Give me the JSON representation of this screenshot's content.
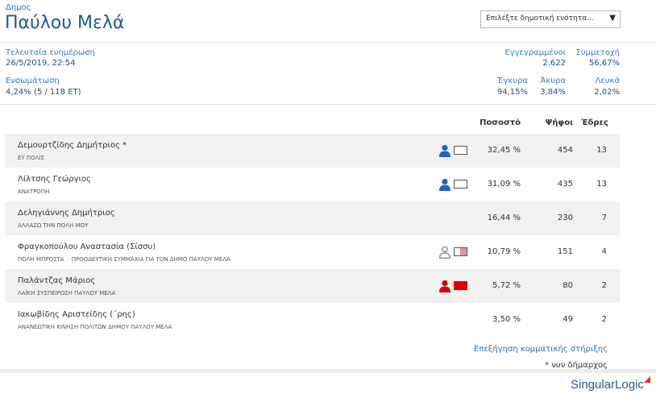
{
  "header": {
    "label": "Δημος",
    "title": "Παύλου Μελά",
    "select_text": "Επιλέξτε δημοτική ενότητα..."
  },
  "stats": {
    "last_update_label": "Τελευταία ενημέρωση",
    "last_update_value": "26/5/2019, 22:54",
    "integration_label": "Ενσωμάτωση",
    "integration_value": "4,24% (5 / 118 ΕΤ)",
    "registered_label": "Εγγεγραμμένοι",
    "registered_value": "2.622",
    "turnout_label": "Συμμετοχή",
    "turnout_value": "56,67%",
    "valid_label": "Έγκυρα",
    "valid_value": "94,15%",
    "invalid_label": "Άκυρα",
    "invalid_value": "3,84%",
    "blank_label": "Λευκά",
    "blank_value": "2,02%"
  },
  "table": {
    "headers": {
      "percent": "Ποσοστό",
      "votes": "Ψήφοι",
      "seats": "Έδρες"
    },
    "rows": [
      {
        "name": "Δεμουρτζίδης Δημήτριος *",
        "party": "ΕΥ ΠΟΛΙΣ",
        "percent": "32,45 %",
        "votes": "454",
        "seats": "13"
      },
      {
        "name": "Λίλτσης Γεώργιος",
        "party": "ΑΝΑΤΡΟΠΗ",
        "percent": "31,09 %",
        "votes": "435",
        "seats": "13"
      },
      {
        "name": "Δεληγιάννης Δημήτριος",
        "party": "ΑΛΛΑΖΩ ΤΗΝ ΠΟΛΗ ΜΟΥ",
        "percent": "16,44 %",
        "votes": "230",
        "seats": "7"
      },
      {
        "name": "Φραγκοπούλου Αναστασία (Σίσσυ)",
        "party": "ΠΟΛΗ ΜΠΡΟΣΤΑ",
        "party2": "ΠΡΟΟΔΕΥΤΙΚΗ ΣΥΜΜΑΧΙΑ ΓΙΑ ΤΟΝ ΔΗΜΟ ΠΑΥΛΟΥ ΜΕΛΑ",
        "percent": "10,79 %",
        "votes": "151",
        "seats": "4"
      },
      {
        "name": "Παλάντζας Μάριος",
        "party": "ΛΑΪΚΗ ΣΥΣΠΕΙΡΩΣΗ ΠΑΥΛΟΥ ΜΕΛΑ",
        "percent": "5,72 %",
        "votes": "80",
        "seats": "2"
      },
      {
        "name": "Ιακωβίδης Αριστείδης (΄ρης)",
        "party": "ΑΝΑΝΕΩΤΙΚΗ ΚΙΝΗΣΗ ΠΟΛΙΤΩΝ ΔΗΜΟΥ ΠΑΥΛΟΥ ΜΕΛΑ",
        "percent": "3,50 %",
        "votes": "49",
        "seats": "2"
      }
    ]
  },
  "footer": {
    "link": "Επεξήγηση κομματικής στήριξης",
    "note": "* νυν δήμαρχος",
    "brand_part1": "Singular",
    "brand_part2": "Logic"
  },
  "colors": {
    "accent": "#1a5a9c",
    "support_blue": "#1f66c1",
    "support_grey": "#8a8a8a",
    "support_red": "#e00000",
    "support_pink": "#e8909a"
  },
  "icons": {
    "support_person": "person-icon",
    "party_flag": "flag-icon",
    "dropdown": "chevron-down-icon",
    "brand_mark": "singularlogic-logo"
  }
}
